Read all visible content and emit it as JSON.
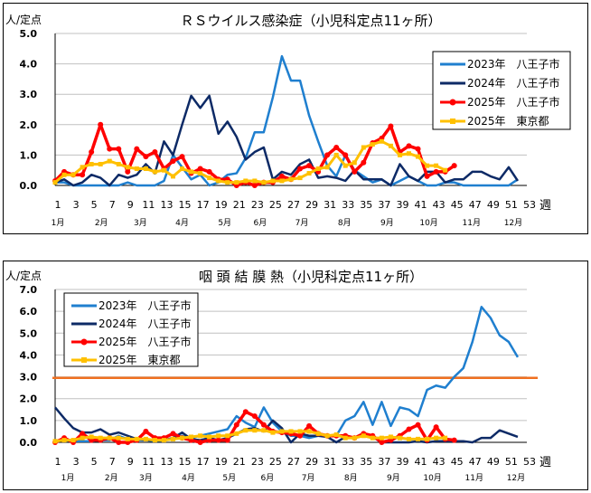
{
  "chart_data": [
    {
      "type": "line",
      "title": "ＲＳウイルス感染症（小児科定点11ヶ所）",
      "ylabel": "人/定点",
      "xlabel": "週",
      "ylim": [
        0,
        5
      ],
      "yticks": [
        "0.0",
        "1.0",
        "2.0",
        "3.0",
        "4.0",
        "5.0"
      ],
      "xticks": [
        1,
        3,
        5,
        7,
        9,
        11,
        13,
        15,
        17,
        19,
        21,
        23,
        25,
        27,
        29,
        31,
        33,
        35,
        37,
        39,
        41,
        43,
        45,
        47,
        49,
        51,
        53
      ],
      "xlim": [
        1,
        53
      ],
      "grid": true,
      "legend_position": "top-right",
      "months": [
        {
          "label": "1月",
          "week": 1
        },
        {
          "label": "2月",
          "week": 5.8
        },
        {
          "label": "3月",
          "week": 10.1
        },
        {
          "label": "4月",
          "week": 14.7
        },
        {
          "label": "5月",
          "week": 19.4
        },
        {
          "label": "6月",
          "week": 23.3
        },
        {
          "label": "7月",
          "week": 27.9
        },
        {
          "label": "8月",
          "week": 32.6
        },
        {
          "label": "9月",
          "week": 37.3
        },
        {
          "label": "10月",
          "week": 41.9
        },
        {
          "label": "11月",
          "week": 46.6
        },
        {
          "label": "12月",
          "week": 51.2
        }
      ],
      "series": [
        {
          "name": "2023年　八王子市",
          "color": "#1f7fcf",
          "marker": "none",
          "values": [
            0.1,
            0.1,
            0,
            0,
            0,
            0,
            0,
            0,
            0.1,
            0,
            0,
            0,
            0.15,
            1.0,
            0.6,
            0.2,
            0.35,
            0,
            0.1,
            0.35,
            0.4,
            0.9,
            1.75,
            1.75,
            2.9,
            4.25,
            3.45,
            3.45,
            2.3,
            1.45,
            0.65,
            0.3,
            1.0,
            0.5,
            0.3,
            0.1,
            0.2,
            0,
            0.15,
            0.3,
            0.15,
            0,
            0,
            0.1,
            0.1,
            0,
            0,
            0,
            0,
            0,
            0,
            0.2
          ]
        },
        {
          "name": "2024年　八王子市",
          "color": "#0d2a66",
          "marker": "none",
          "values": [
            0.1,
            0.2,
            0,
            0.1,
            0.35,
            0.25,
            0,
            0.35,
            0.25,
            0.35,
            0.7,
            0.4,
            1.45,
            1.0,
            2.0,
            2.95,
            2.55,
            2.95,
            1.7,
            2.1,
            1.6,
            0.85,
            1.1,
            1.25,
            0.2,
            0.45,
            0.35,
            0.7,
            0.85,
            0.25,
            0.3,
            0.25,
            0.15,
            0.5,
            0.2,
            0.2,
            0.2,
            0,
            0.7,
            0.3,
            0.15,
            0.45,
            0.45,
            0.1,
            0.2,
            0.2,
            0.45,
            0.45,
            0.3,
            0.2,
            0.6,
            0.15
          ]
        },
        {
          "name": "2025年　八王子市",
          "color": "#ff0000",
          "marker": "circle",
          "values": [
            0.15,
            0.45,
            0.35,
            0.35,
            1.1,
            2.0,
            1.2,
            1.2,
            0.45,
            1.2,
            0.95,
            1.1,
            0.55,
            0.8,
            0.95,
            0.4,
            0.55,
            0.45,
            0.2,
            0.2,
            0,
            0.1,
            0,
            0.1,
            0.1,
            0.3,
            0.2,
            0.55,
            0.65,
            0.45,
            1.0,
            1.25,
            1.0,
            0.45,
            0.75,
            1.4,
            1.55,
            1.95,
            1.1,
            1.3,
            1.2,
            0.3,
            0.45,
            0.45,
            0.65
          ]
        },
        {
          "name": "2025年　東京都",
          "color": "#ffc000",
          "marker": "square",
          "values": [
            0.1,
            0.35,
            0.35,
            0.6,
            0.7,
            0.7,
            0.8,
            0.7,
            0.6,
            0.55,
            0.55,
            0.45,
            0.5,
            0.3,
            0.55,
            0.45,
            0.4,
            0.25,
            0.15,
            0.1,
            0.1,
            0.15,
            0.15,
            0.1,
            0.15,
            0.15,
            0.2,
            0.25,
            0.4,
            0.55,
            0.6,
            1.0,
            0.65,
            0.75,
            1.25,
            1.35,
            1.45,
            1.3,
            1.0,
            1.05,
            0.95,
            0.65,
            0.65,
            0.5
          ]
        }
      ]
    },
    {
      "type": "line",
      "title": "咽 頭 結 膜 熱（小児科定点11ヶ所）",
      "ylabel": "人/定点",
      "xlabel": "週",
      "ylim": [
        0,
        7
      ],
      "yticks": [
        "0.0",
        "1.0",
        "2.0",
        "3.0",
        "4.0",
        "5.0",
        "6.0",
        "7.0"
      ],
      "xticks": [
        1,
        3,
        5,
        7,
        9,
        11,
        13,
        15,
        17,
        19,
        21,
        23,
        25,
        27,
        29,
        31,
        33,
        35,
        37,
        39,
        41,
        43,
        45,
        47,
        49,
        51,
        53
      ],
      "xlim": [
        1,
        53
      ],
      "grid": true,
      "legend_position": "top-left",
      "threshold": {
        "value": 2.95,
        "color": "#f07020"
      },
      "months": [
        {
          "label": "1月",
          "week": 2.1
        },
        {
          "label": "2月",
          "week": 6.9
        },
        {
          "label": "3月",
          "week": 10.7
        },
        {
          "label": "4月",
          "week": 15.4
        },
        {
          "label": "5月",
          "week": 19.9
        },
        {
          "label": "6月",
          "week": 24.1
        },
        {
          "label": "7月",
          "week": 28.6
        },
        {
          "label": "8月",
          "week": 33.3
        },
        {
          "label": "9月",
          "week": 38
        },
        {
          "label": "10月",
          "week": 42.3
        },
        {
          "label": "11月",
          "week": 46.9
        },
        {
          "label": "12月",
          "week": 51.5
        }
      ],
      "series": [
        {
          "name": "2023年　八王子市",
          "color": "#1f7fcf",
          "marker": "none",
          "values": [
            0.05,
            0.1,
            0.05,
            0.05,
            0.05,
            0.1,
            0.1,
            0.3,
            0.15,
            0.1,
            0.1,
            0.05,
            0.1,
            0.2,
            0.3,
            0.2,
            0.3,
            0.4,
            0.5,
            0.6,
            1.2,
            0.9,
            0.7,
            1.6,
            0.9,
            0.5,
            0.3,
            0.3,
            0.2,
            0.3,
            0.3,
            0.3,
            1.0,
            1.2,
            1.85,
            0.8,
            1.85,
            0.75,
            1.6,
            1.5,
            1.2,
            2.4,
            2.6,
            2.5,
            3.0,
            3.4,
            4.6,
            6.2,
            5.7,
            4.9,
            4.6,
            3.9
          ]
        },
        {
          "name": "2024年　八王子市",
          "color": "#0d2a66",
          "marker": "none",
          "values": [
            1.6,
            1.1,
            0.65,
            0.45,
            0.45,
            0.6,
            0.35,
            0.45,
            0.3,
            0.15,
            0.1,
            0.1,
            0.1,
            0.2,
            0.45,
            0.15,
            0.1,
            0.2,
            0.1,
            0.2,
            0.4,
            0.6,
            0.65,
            0.5,
            1.0,
            0.65,
            0,
            0.4,
            0.3,
            0.3,
            0.25,
            0,
            0.25,
            0.2,
            0.3,
            0.25,
            0,
            0,
            0,
            0,
            0.05,
            0,
            0.05,
            0.05,
            0.05,
            0.05,
            0,
            0.2,
            0.2,
            0.55,
            0.4,
            0.25
          ]
        },
        {
          "name": "2025年　八王子市",
          "color": "#ff0000",
          "marker": "circle",
          "values": [
            0,
            0.2,
            0,
            0.4,
            0.1,
            0.1,
            0.2,
            0,
            0,
            0.1,
            0.5,
            0.2,
            0.2,
            0.4,
            0.2,
            0.1,
            0,
            0.1,
            0.1,
            0.1,
            0.8,
            1.4,
            1.2,
            0.8,
            0.5,
            0.45,
            0.4,
            0.3,
            0.75,
            0.4,
            0.3,
            0.3,
            0.3,
            0.2,
            0.4,
            0.3,
            0,
            0.1,
            0.3,
            0.6,
            0.8,
            0.1,
            0.7,
            0.15,
            0.1
          ]
        },
        {
          "name": "2025年　東京都",
          "color": "#ffc000",
          "marker": "square",
          "values": [
            0.05,
            0.1,
            0.1,
            0.2,
            0.25,
            0.2,
            0.2,
            0.2,
            0.15,
            0.15,
            0.15,
            0.1,
            0.1,
            0.15,
            0.2,
            0.25,
            0.3,
            0.25,
            0.3,
            0.3,
            0.4,
            0.55,
            0.55,
            0.55,
            0.45,
            0.5,
            0.5,
            0.5,
            0.5,
            0.4,
            0.3,
            0.35,
            0.2,
            0.2,
            0.3,
            0.2,
            0.2,
            0.25,
            0.2,
            0.15,
            0.15,
            0.15,
            0.2,
            0.2
          ]
        }
      ]
    }
  ]
}
